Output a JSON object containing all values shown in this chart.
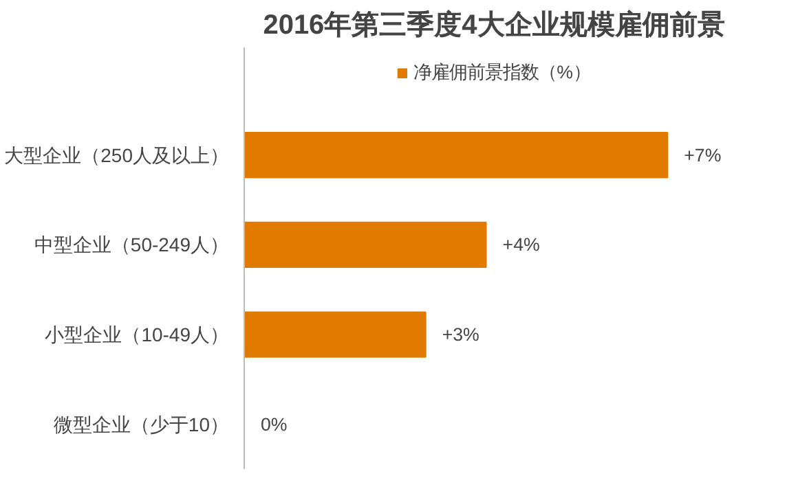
{
  "chart_data": {
    "type": "bar",
    "orientation": "horizontal",
    "title": "2016年第三季度4大企业规模雇佣前景",
    "categories": [
      "大型企业（250人及以上）",
      "中型企业（50-249人）",
      "小型企业（10-49人）",
      "微型企业（少于10）"
    ],
    "series": [
      {
        "name": "净雇佣前景指数（%）",
        "color": "#e07b00",
        "values": [
          7,
          4,
          3,
          0
        ],
        "value_labels": [
          "+7%",
          "+4%",
          "+3%",
          "0%"
        ]
      }
    ],
    "legend": "top"
  }
}
